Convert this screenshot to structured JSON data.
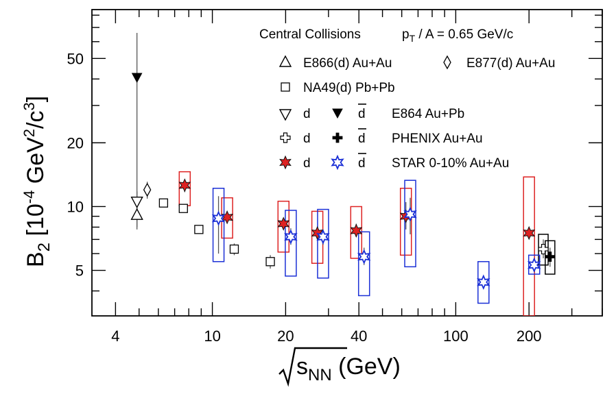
{
  "chart_data": {
    "type": "scatter",
    "xscale": "log",
    "yscale": "log",
    "xlim": [
      3.2,
      400
    ],
    "ylim": [
      3.05,
      85
    ],
    "xticks": [
      4,
      10,
      20,
      40,
      100,
      200
    ],
    "xtick_labels": [
      "4",
      "10",
      "20",
      "40",
      "100",
      "200"
    ],
    "yticks": [
      5,
      10,
      20,
      50
    ],
    "ytick_labels": [
      "5",
      "10",
      "20",
      "50"
    ],
    "xlabel": {
      "pre": "",
      "main": "s",
      "sub": "NN",
      "post": " (GeV)"
    },
    "ylabel": {
      "main": "B",
      "sub": "2",
      "rest1": " [10",
      "sup1": "-4",
      "rest2": " GeV",
      "sup2": "2",
      "rest3": "/c",
      "sup3": "3",
      "rest4": "]"
    },
    "legend_header": {
      "left": "Central Collisions",
      "p": "p",
      "p_sub": "T",
      "right": " / A = 0.65 GeV/c"
    },
    "legend": [
      {
        "symbol": "triangle-up-open",
        "text": "E866(d) Au+Au"
      },
      {
        "symbol": "diamond-open",
        "text": "E877(d) Au+Au"
      },
      {
        "symbol": "square-open",
        "text": "NA49(d) Pb+Pb"
      },
      {
        "symbol": "triangle-down-open",
        "label": "d",
        "symbol2": "triangle-down-filled",
        "label2": "d",
        "text": "E864 Au+Pb"
      },
      {
        "symbol": "cross-open",
        "label": "d",
        "symbol2": "cross-filled",
        "label2": "d",
        "text": "PHENIX Au+Au"
      },
      {
        "symbol": "star-red",
        "label": "d",
        "symbol2": "star-blue-open",
        "label2": "d",
        "text": "STAR 0-10% Au+Au"
      }
    ],
    "series": [
      {
        "name": "E866(d) Au+Au",
        "marker": "triangle-up-open",
        "color": "#000000",
        "points": [
          {
            "x": 4.9,
            "y": 9.1,
            "ylo": 8.0,
            "yhi": 10.4
          }
        ]
      },
      {
        "name": "E877(d) Au+Au",
        "marker": "diamond-open",
        "color": "#000000",
        "points": [
          {
            "x": 5.4,
            "y": 12.0,
            "ylo": 10.9,
            "yhi": 13.1
          }
        ]
      },
      {
        "name": "NA49(d) Pb+Pb",
        "marker": "square-open",
        "color": "#000000",
        "points": [
          {
            "x": 6.3,
            "y": 10.4,
            "ylo": 10.0,
            "yhi": 10.8
          },
          {
            "x": 7.6,
            "y": 9.8,
            "ylo": 9.4,
            "yhi": 10.2
          },
          {
            "x": 8.8,
            "y": 7.8,
            "ylo": 7.5,
            "yhi": 8.1
          },
          {
            "x": 12.3,
            "y": 6.3,
            "ylo": 5.9,
            "yhi": 6.7
          },
          {
            "x": 17.3,
            "y": 5.5,
            "ylo": 5.1,
            "yhi": 5.9
          }
        ]
      },
      {
        "name": "E864 Au+Pb d",
        "marker": "triangle-down-open",
        "color": "#000000",
        "points": [
          {
            "x": 4.9,
            "y": 10.6,
            "ylo": 9.5,
            "yhi": 11.8
          }
        ]
      },
      {
        "name": "E864 Au+Pb dbar",
        "marker": "triangle-down-filled",
        "color": "#000000",
        "points": [
          {
            "x": 4.9,
            "y": 41.0,
            "ylo": 7.8,
            "yhi": 66.0
          }
        ]
      },
      {
        "name": "PHENIX Au+Au d",
        "marker": "cross-open",
        "color": "#000000",
        "points": [
          {
            "x": 229,
            "y": 6.3,
            "ylo": 5.7,
            "yhi": 7.0
          }
        ],
        "sys": [
          {
            "x": 229,
            "ylo": 5.3,
            "yhi": 7.4
          }
        ]
      },
      {
        "name": "PHENIX Au+Au dbar",
        "marker": "cross-filled",
        "color": "#000000",
        "points": [
          {
            "x": 244,
            "y": 5.8,
            "ylo": 5.2,
            "yhi": 6.4
          }
        ],
        "sys": [
          {
            "x": 244,
            "ylo": 4.8,
            "yhi": 6.9
          }
        ]
      },
      {
        "name": "STAR 0-10% Au+Au d",
        "marker": "star-red",
        "color": "#dd2222",
        "points": [
          {
            "x": 7.7,
            "y": 12.6,
            "ylo": 11.7,
            "yhi": 13.4
          },
          {
            "x": 11.5,
            "y": 8.9,
            "ylo": 8.4,
            "yhi": 9.4
          },
          {
            "x": 19.6,
            "y": 8.3,
            "ylo": 7.8,
            "yhi": 8.8
          },
          {
            "x": 27,
            "y": 7.5,
            "ylo": 7.0,
            "yhi": 8.0
          },
          {
            "x": 39,
            "y": 7.7,
            "ylo": 7.2,
            "yhi": 8.3
          },
          {
            "x": 62.4,
            "y": 9.0,
            "ylo": 7.8,
            "yhi": 10.5
          },
          {
            "x": 200,
            "y": 7.5,
            "ylo": 7.1,
            "yhi": 7.9
          }
        ],
        "sys": [
          {
            "x": 7.7,
            "ylo": 10.1,
            "yhi": 14.6
          },
          {
            "x": 11.5,
            "ylo": 7.1,
            "yhi": 11.0
          },
          {
            "x": 19.6,
            "ylo": 6.1,
            "yhi": 10.6
          },
          {
            "x": 27,
            "ylo": 5.4,
            "yhi": 9.5
          },
          {
            "x": 39,
            "ylo": 5.7,
            "yhi": 10.0
          },
          {
            "x": 62.4,
            "ylo": 5.9,
            "yhi": 12.2
          },
          {
            "x": 200,
            "ylo": 1.0,
            "yhi": 13.8
          }
        ]
      },
      {
        "name": "STAR 0-10% Au+Au dbar",
        "marker": "star-blue-open",
        "color": "#1a2fd6",
        "points": [
          {
            "x": 10.6,
            "y": 8.8,
            "ylo": 6.0,
            "yhi": 11.2
          },
          {
            "x": 21.0,
            "y": 7.2,
            "ylo": 6.6,
            "yhi": 7.9
          },
          {
            "x": 28.5,
            "y": 7.2,
            "ylo": 6.6,
            "yhi": 7.8
          },
          {
            "x": 42,
            "y": 5.8,
            "ylo": 5.3,
            "yhi": 6.4
          },
          {
            "x": 65,
            "y": 9.2,
            "ylo": 7.4,
            "yhi": 11.0
          },
          {
            "x": 130,
            "y": 4.4,
            "ylo": 4.1,
            "yhi": 4.7
          },
          {
            "x": 210,
            "y": 5.3,
            "ylo": 5.0,
            "yhi": 5.6
          }
        ],
        "sys": [
          {
            "x": 10.6,
            "ylo": 5.5,
            "yhi": 12.2
          },
          {
            "x": 21.0,
            "ylo": 4.7,
            "yhi": 9.6
          },
          {
            "x": 28.5,
            "ylo": 4.6,
            "yhi": 9.7
          },
          {
            "x": 42,
            "ylo": 3.8,
            "yhi": 7.6
          },
          {
            "x": 65,
            "ylo": 5.2,
            "yhi": 13.3
          },
          {
            "x": 130,
            "ylo": 3.5,
            "yhi": 5.5
          },
          {
            "x": 210,
            "ylo": 4.8,
            "yhi": 5.9
          }
        ]
      }
    ]
  }
}
